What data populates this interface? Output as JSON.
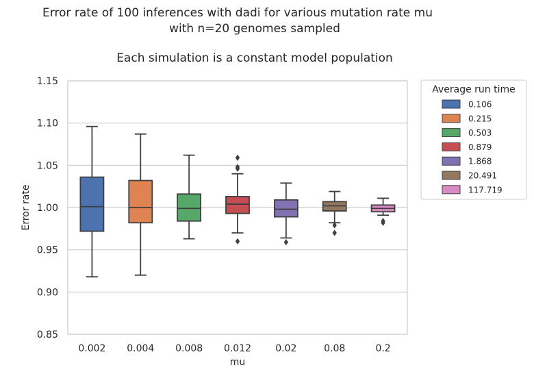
{
  "chart_data": {
    "type": "box",
    "title_lines": [
      "Error rate of 100 inferences with dadi for various mutation rate mu",
      "with n=20 genomes sampled",
      "Each simulation is a constant model population"
    ],
    "xlabel": "mu",
    "ylabel": "Error rate",
    "ylim": [
      0.85,
      1.15
    ],
    "yticks": [
      "0.85",
      "0.90",
      "0.95",
      "1.00",
      "1.05",
      "1.10",
      "1.15"
    ],
    "grid": "horizontal",
    "categories": [
      "0.002",
      "0.004",
      "0.008",
      "0.012",
      "0.02",
      "0.08",
      "0.2"
    ],
    "legend": {
      "title": "Average run time",
      "placement": "outside-right",
      "entries": [
        "0.106",
        "0.215",
        "0.503",
        "0.879",
        "1.868",
        "20.491",
        "117.719"
      ]
    },
    "colors": [
      "#4c72b0",
      "#dd8452",
      "#55a868",
      "#c44e52",
      "#8172b3",
      "#937860",
      "#da8bc3"
    ],
    "boxes": [
      {
        "category": "0.002",
        "whisker_low": 0.918,
        "q1": 0.972,
        "median": 1.001,
        "q3": 1.036,
        "whisker_high": 1.096,
        "outliers": []
      },
      {
        "category": "0.004",
        "whisker_low": 0.92,
        "q1": 0.982,
        "median": 1.0,
        "q3": 1.032,
        "whisker_high": 1.087,
        "outliers": []
      },
      {
        "category": "0.008",
        "whisker_low": 0.963,
        "q1": 0.984,
        "median": 0.999,
        "q3": 1.016,
        "whisker_high": 1.062,
        "outliers": []
      },
      {
        "category": "0.012",
        "whisker_low": 0.97,
        "q1": 0.993,
        "median": 1.004,
        "q3": 1.013,
        "whisker_high": 1.04,
        "outliers": [
          1.059,
          1.048,
          1.046,
          0.96
        ]
      },
      {
        "category": "0.02",
        "whisker_low": 0.964,
        "q1": 0.989,
        "median": 0.998,
        "q3": 1.009,
        "whisker_high": 1.029,
        "outliers": [
          0.959
        ]
      },
      {
        "category": "0.08",
        "whisker_low": 0.982,
        "q1": 0.996,
        "median": 1.002,
        "q3": 1.007,
        "whisker_high": 1.019,
        "outliers": [
          0.979,
          0.97
        ]
      },
      {
        "category": "0.2",
        "whisker_low": 0.991,
        "q1": 0.995,
        "median": 0.999,
        "q3": 1.003,
        "whisker_high": 1.011,
        "outliers": [
          0.984,
          0.982
        ]
      }
    ]
  }
}
